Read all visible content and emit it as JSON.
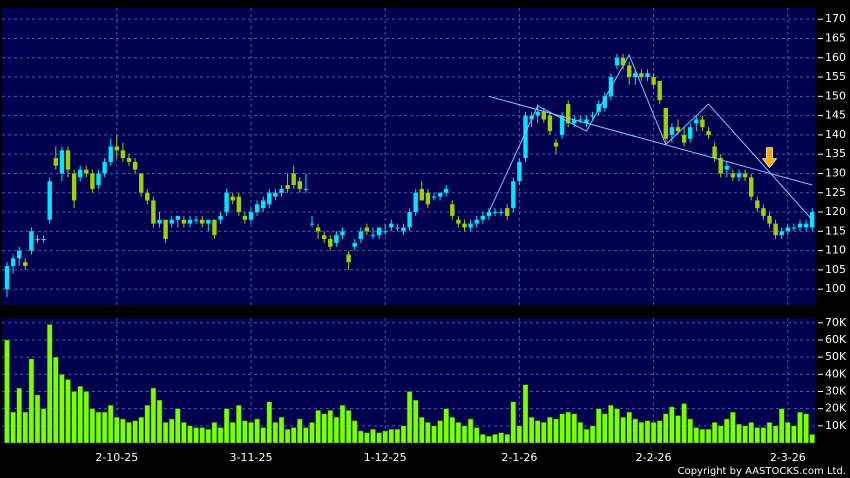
{
  "chart_data": {
    "type": "candlestick",
    "copyright": "Copyright by AASTOCKS.com Ltd.",
    "categories": [
      null,
      null,
      null,
      null,
      null,
      null,
      null,
      null,
      null,
      null,
      null,
      null,
      null,
      null,
      null,
      null,
      null,
      null,
      "2-10-25",
      null,
      null,
      null,
      null,
      null,
      null,
      null,
      null,
      null,
      null,
      null,
      null,
      null,
      null,
      null,
      null,
      null,
      null,
      null,
      null,
      null,
      "3-11-25",
      null,
      null,
      null,
      null,
      null,
      null,
      null,
      null,
      null,
      null,
      null,
      null,
      null,
      null,
      null,
      null,
      null,
      null,
      null,
      null,
      null,
      "1-12-25",
      null,
      null,
      null,
      null,
      null,
      null,
      null,
      null,
      null,
      null,
      null,
      null,
      null,
      null,
      null,
      null,
      null,
      null,
      null,
      null,
      null,
      "2-1-26",
      null,
      null,
      null,
      null,
      null,
      null,
      null,
      null,
      null,
      null,
      null,
      null,
      null,
      null,
      null,
      null,
      null,
      null,
      null,
      null,
      null,
      "2-2-26",
      null,
      null,
      null,
      null,
      null,
      null,
      null,
      null,
      null,
      null,
      null,
      null,
      null,
      null,
      null,
      null,
      null,
      null,
      null,
      null,
      null,
      "2-3-26",
      null,
      null,
      null,
      null
    ],
    "open": [
      100,
      106,
      108,
      107,
      110,
      113,
      113,
      118,
      134,
      130,
      136,
      130,
      129,
      131,
      130,
      127,
      130,
      133,
      137,
      136,
      134,
      133,
      130,
      125,
      123,
      117,
      118,
      117,
      118,
      118,
      117,
      118,
      118,
      117,
      118,
      118,
      120,
      124,
      124,
      119,
      118,
      120,
      121,
      122,
      124,
      125,
      127,
      130,
      128,
      126,
      117,
      116,
      114,
      113,
      112,
      114,
      109,
      111,
      113,
      116,
      114,
      114,
      115,
      116,
      116,
      115,
      116,
      120,
      126,
      125,
      124,
      124,
      125,
      122,
      118,
      117,
      116,
      117,
      118,
      119,
      120,
      120,
      121,
      121,
      128,
      134,
      144,
      145,
      146,
      145,
      138,
      140,
      148,
      143,
      144,
      143,
      145,
      146,
      147,
      150,
      158,
      160,
      158,
      155,
      156,
      155,
      155,
      154,
      147,
      140,
      142,
      140,
      139,
      143,
      144,
      141,
      137,
      134,
      131,
      130,
      129,
      130,
      129,
      123,
      121,
      119,
      117,
      114,
      115,
      116,
      116,
      116,
      116
    ],
    "high": [
      107,
      109,
      111,
      108,
      116,
      114,
      114,
      129,
      137,
      137,
      137,
      131,
      132,
      132,
      131,
      131,
      134,
      139,
      140,
      138,
      135,
      134,
      130,
      126,
      124,
      120,
      118,
      119,
      119,
      119,
      119,
      119,
      119,
      118,
      118,
      120,
      126,
      125,
      125,
      120,
      121,
      123,
      124,
      126,
      126,
      127,
      130,
      132,
      129,
      130,
      119,
      117,
      115,
      114,
      115,
      116,
      110,
      113,
      116,
      117,
      116,
      116,
      117,
      118,
      117,
      117,
      121,
      126,
      128,
      126,
      125,
      125,
      127,
      123,
      119,
      118,
      118,
      119,
      120,
      121,
      121,
      121,
      122,
      129,
      134,
      146,
      146,
      148,
      147,
      146,
      139,
      146,
      149,
      145,
      145,
      145,
      146,
      149,
      151,
      156,
      161,
      161,
      159,
      157,
      157,
      157,
      156,
      154,
      147,
      143,
      144,
      142,
      143,
      145,
      145,
      142,
      138,
      135,
      133,
      131,
      131,
      131,
      130,
      124,
      122,
      120,
      118,
      116,
      117,
      117,
      118,
      118,
      121
    ],
    "low": [
      98,
      104,
      106,
      105,
      109,
      112,
      112,
      117,
      131,
      128,
      129,
      121,
      128,
      129,
      125,
      126,
      129,
      132,
      134,
      133,
      132,
      130,
      124,
      122,
      116,
      116,
      112,
      116,
      116,
      116,
      116,
      117,
      116,
      115,
      113,
      117,
      119,
      122,
      119,
      117,
      117,
      119,
      120,
      121,
      123,
      124,
      125,
      126,
      125,
      125,
      116,
      113,
      112,
      110,
      111,
      113,
      105,
      110,
      112,
      114,
      113,
      113,
      114,
      115,
      115,
      114,
      115,
      119,
      123,
      121,
      123,
      123,
      124,
      118,
      116,
      115,
      115,
      116,
      117,
      118,
      119,
      119,
      118,
      120,
      127,
      133,
      142,
      143,
      143,
      140,
      135,
      139,
      142,
      142,
      143,
      142,
      144,
      145,
      146,
      149,
      157,
      157,
      153,
      153,
      154,
      154,
      152,
      148,
      138,
      138,
      140,
      137,
      138,
      141,
      141,
      139,
      133,
      129,
      129,
      128,
      128,
      128,
      123,
      120,
      118,
      116,
      113,
      113,
      114,
      115,
      115,
      115,
      115
    ],
    "close": [
      106,
      108,
      110,
      106,
      115,
      113,
      113,
      128,
      132,
      136,
      131,
      123,
      131,
      130,
      126,
      130,
      133,
      137,
      136,
      134,
      133,
      131,
      125,
      123,
      117,
      118,
      113,
      118,
      119,
      117,
      118,
      118,
      117,
      118,
      114,
      119,
      125,
      123,
      120,
      118,
      120,
      122,
      123,
      125,
      125,
      126,
      126,
      127,
      126,
      126,
      117,
      115,
      113,
      111,
      114,
      115,
      107,
      112,
      115,
      115,
      114,
      116,
      115,
      117,
      116,
      116,
      120,
      125,
      123,
      122,
      124,
      125,
      126,
      119,
      117,
      116,
      117,
      118,
      119,
      120,
      120,
      120,
      119,
      128,
      133,
      145,
      145,
      146,
      144,
      141,
      137,
      145,
      143,
      144,
      144,
      144,
      145,
      148,
      150,
      155,
      160,
      158,
      155,
      156,
      155,
      156,
      153,
      149,
      139,
      142,
      141,
      138,
      142,
      144,
      142,
      140,
      134,
      130,
      132,
      129,
      130,
      129,
      124,
      121,
      119,
      117,
      114,
      115,
      116,
      116,
      117,
      117,
      120
    ],
    "up_color": "#00e5ff",
    "down_color": "#9fd000",
    "ylim": [
      95.9,
      172.9
    ],
    "yticks": [
      100,
      105,
      110,
      115,
      120,
      125,
      130,
      135,
      140,
      145,
      150,
      155,
      160,
      165,
      170
    ],
    "grid": true,
    "pattern_lines": [
      [
        [
          79,
          150
        ],
        [
          132,
          127
        ]
      ],
      [
        [
          79,
          120
        ],
        [
          87,
          147.5
        ],
        [
          95,
          141
        ],
        [
          102,
          160.7
        ],
        [
          108,
          137.5
        ],
        [
          115,
          148
        ],
        [
          132,
          118
        ]
      ]
    ],
    "pattern_color": "#7fc8ff",
    "arrow": {
      "index": 125,
      "value": 131,
      "color": "#ffaa00"
    },
    "volume": {
      "color": "#7dff00",
      "ylim": [
        0,
        72800
      ],
      "yticks": [
        {
          "value": 10000,
          "label": "10K"
        },
        {
          "value": 20000,
          "label": "20K"
        },
        {
          "value": 30000,
          "label": "30K"
        },
        {
          "value": 40000,
          "label": "40K"
        },
        {
          "value": 50000,
          "label": "50K"
        },
        {
          "value": 60000,
          "label": "60K"
        },
        {
          "value": 70000,
          "label": "70K"
        }
      ],
      "values": [
        60000,
        18000,
        32000,
        18000,
        49000,
        28000,
        20000,
        69000,
        50000,
        40000,
        37000,
        30000,
        33000,
        30000,
        20000,
        18000,
        18000,
        22000,
        15000,
        14000,
        12000,
        13000,
        15000,
        22000,
        32000,
        25000,
        12000,
        14000,
        20000,
        12000,
        10000,
        9000,
        9000,
        8000,
        12000,
        9000,
        20000,
        12000,
        22000,
        13000,
        12000,
        14000,
        9000,
        24000,
        12000,
        15000,
        8000,
        9000,
        14000,
        9000,
        12000,
        19000,
        17000,
        19000,
        15000,
        22000,
        19000,
        13000,
        7000,
        6000,
        8000,
        6000,
        7000,
        8000,
        8000,
        10000,
        30000,
        25000,
        15000,
        12000,
        10000,
        13000,
        20000,
        15000,
        12000,
        10000,
        14000,
        9000,
        5000,
        4000,
        5000,
        6000,
        5000,
        24000,
        10000,
        34000,
        15000,
        13000,
        12000,
        15000,
        14000,
        17000,
        18000,
        17000,
        12000,
        8000,
        10000,
        20000,
        17000,
        22000,
        20000,
        15000,
        18000,
        14000,
        12000,
        13000,
        12000,
        13000,
        17000,
        21000,
        16000,
        23000,
        14000,
        9000,
        8000,
        8000,
        12000,
        10000,
        14000,
        18000,
        11000,
        10000,
        12000,
        9000,
        9000,
        12000,
        10000,
        20000,
        12000,
        10000,
        18000,
        17000,
        5000
      ]
    }
  }
}
